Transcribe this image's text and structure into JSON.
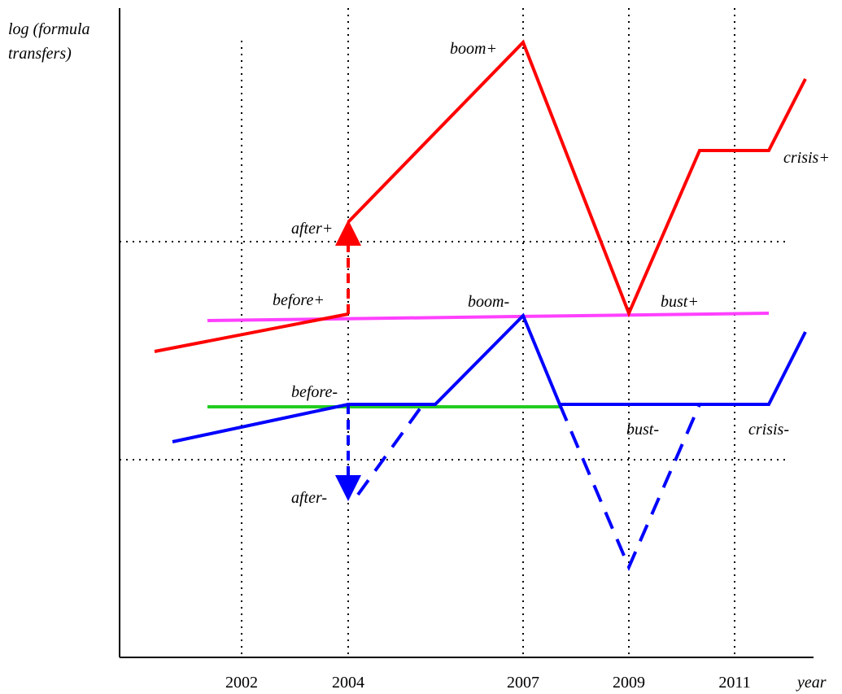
{
  "y_axis": {
    "label_lines": [
      "log (formula",
      "transfers)"
    ]
  },
  "x_axis": {
    "label": "year",
    "ticks": [
      "2002",
      "2004",
      "2007",
      "2009",
      "2011"
    ]
  },
  "annotations": {
    "boom_plus": "boom+",
    "crisis_plus": "crisis+",
    "after_plus": "after+",
    "before_plus": "before+",
    "boom_minus": "boom-",
    "bust_plus": "bust+",
    "before_minus": "before-",
    "bust_minus": "bust-",
    "crisis_minus": "crisis-",
    "after_minus": "after-"
  }
}
